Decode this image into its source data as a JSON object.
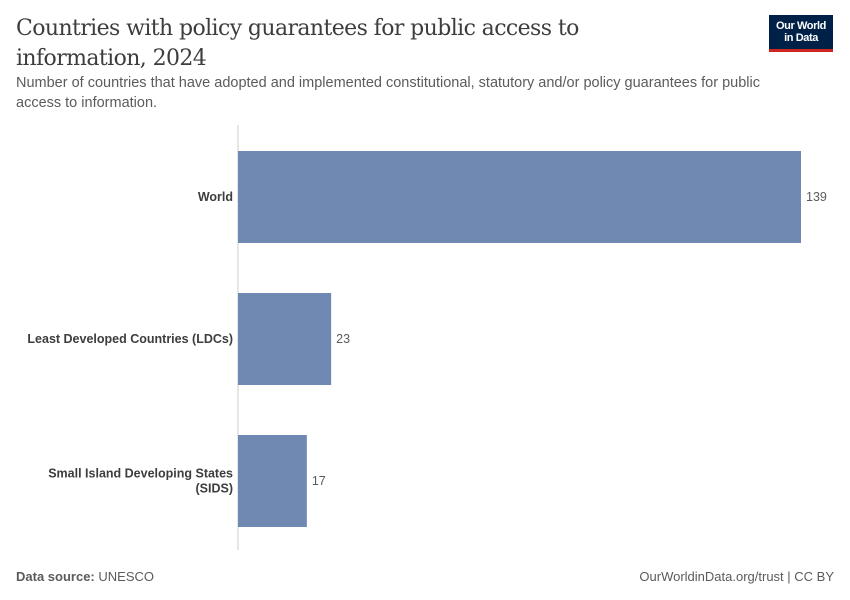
{
  "header": {
    "title": "Countries with policy guarantees for public access to information, 2024",
    "subtitle": "Number of countries that have adopted and implemented constitutional, statutory and/or policy guarantees for public access to information.",
    "logo_line1": "Our World",
    "logo_line2": "in Data"
  },
  "footer": {
    "source_label": "Data source:",
    "source": "UNESCO",
    "license": "OurWorldinData.org/trust | CC BY"
  },
  "colors": {
    "bar": "#6f89b2",
    "logo_bg": "#002147",
    "logo_accent": "#ce261e"
  },
  "chart_data": {
    "type": "bar",
    "orientation": "horizontal",
    "title": "Countries with policy guarantees for public access to information, 2024",
    "categories": [
      [
        "World"
      ],
      [
        "Least Developed Countries (LDCs)"
      ],
      [
        "Small Island Developing States",
        "(SIDS)"
      ]
    ],
    "values": [
      139,
      23,
      17
    ],
    "xlim": [
      0,
      139
    ],
    "grid": false,
    "legend": "none"
  }
}
